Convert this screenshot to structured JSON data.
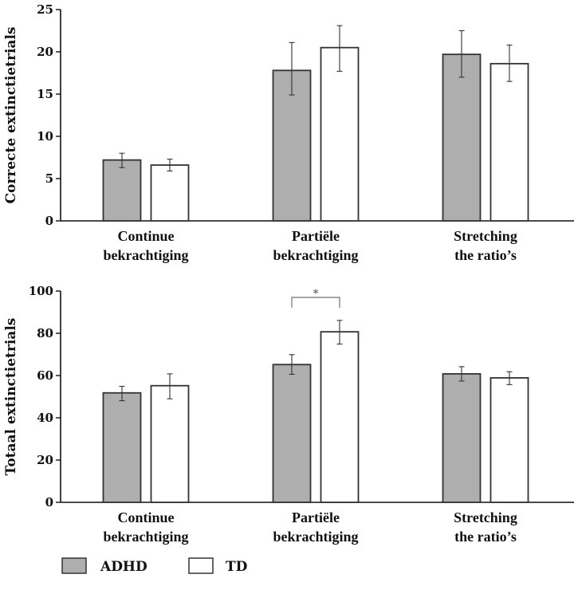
{
  "colors": {
    "ADHD": "#aeaeae",
    "TD": "#ffffff",
    "outline": "#333333",
    "axis": "#111111"
  },
  "legend": [
    {
      "label": "ADHD",
      "color": "#aeaeae"
    },
    {
      "label": "TD",
      "color": "#ffffff"
    }
  ],
  "chart_data": [
    {
      "type": "bar",
      "title": "",
      "xlabel": "",
      "ylabel": "Correcte extinctietrials",
      "ylim": [
        0,
        25
      ],
      "yticks": [
        "0",
        "5",
        "10",
        "15",
        "20",
        "25"
      ],
      "categories": [
        [
          "Continue",
          "bekrachtiging"
        ],
        [
          "Partiële",
          "bekrachtiging"
        ],
        [
          "Stretching",
          "the ratio’s"
        ]
      ],
      "series": [
        {
          "name": "ADHD",
          "values": [
            7.2,
            17.8,
            19.7
          ],
          "err_low": [
            6.3,
            14.9,
            17.0
          ],
          "err_high": [
            8.0,
            21.1,
            22.5
          ]
        },
        {
          "name": "TD",
          "values": [
            6.6,
            20.5,
            18.6
          ],
          "err_low": [
            5.9,
            17.7,
            16.5
          ],
          "err_high": [
            7.3,
            23.1,
            20.8
          ]
        }
      ],
      "annotations": [],
      "legend": "bottom-left",
      "grid": false
    },
    {
      "type": "bar",
      "title": "",
      "xlabel": "",
      "ylabel": "Totaal extinctietrials",
      "ylim": [
        0,
        100
      ],
      "yticks": [
        "0",
        "20",
        "40",
        "60",
        "80",
        "100"
      ],
      "categories": [
        [
          "Continue",
          "bekrachtiging"
        ],
        [
          "Partiële",
          "bekrachtiging"
        ],
        [
          "Stretching",
          "the ratio’s"
        ]
      ],
      "series": [
        {
          "name": "ADHD",
          "values": [
            51.8,
            65.2,
            60.8
          ],
          "err_low": [
            48.1,
            60.6,
            57.4
          ],
          "err_high": [
            54.9,
            69.9,
            64.2
          ]
        },
        {
          "name": "TD",
          "values": [
            55.2,
            80.7,
            58.9
          ],
          "err_low": [
            49.0,
            74.9,
            55.7
          ],
          "err_high": [
            60.8,
            86.1,
            61.8
          ]
        }
      ],
      "annotations": [
        {
          "text": "*",
          "category_index": 1,
          "between": [
            "ADHD",
            "TD"
          ],
          "meaning": "significant difference"
        }
      ],
      "legend": "bottom-left",
      "grid": false
    }
  ]
}
